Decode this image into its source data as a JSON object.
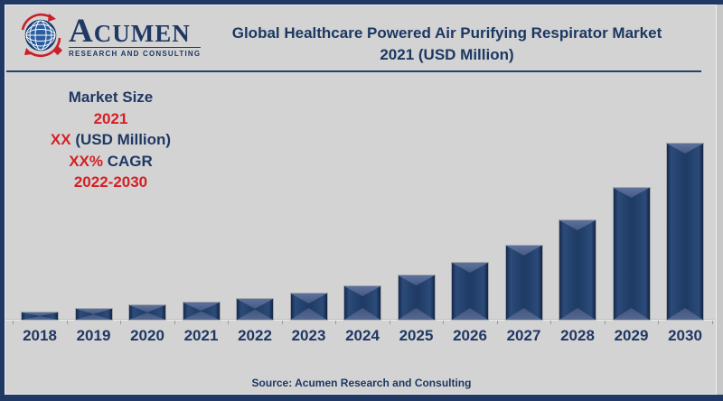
{
  "header": {
    "logo": {
      "name": "ACUMEN",
      "subtitle": "RESEARCH AND CONSULTING"
    },
    "title_line1": "Global Healthcare Powered Air Purifying Respirator Market",
    "title_line2": "2021 (USD Million)"
  },
  "info_panel": {
    "lines": [
      {
        "segments": [
          {
            "text": "Market Size",
            "color": "#1f3864"
          }
        ]
      },
      {
        "segments": [
          {
            "text": "2021",
            "color": "#d42025"
          }
        ]
      },
      {
        "segments": [
          {
            "text": "XX",
            "color": "#d42025"
          },
          {
            "text": " (USD Million)",
            "color": "#1f3864"
          }
        ]
      },
      {
        "segments": [
          {
            "text": "XX%",
            "color": "#d42025"
          },
          {
            "text": " CAGR",
            "color": "#1f3864"
          }
        ]
      },
      {
        "segments": [
          {
            "text": "2022-2030",
            "color": "#d42025"
          }
        ]
      }
    ]
  },
  "footer": {
    "source": "Source: Acumen Research and Consulting"
  },
  "colors": {
    "navy": "#1f3864",
    "red": "#d42025",
    "background": "#d3d3d3",
    "bar_fill": "#1f3c66",
    "bar_bevel": "#4e6289",
    "axis_line": "#ededed"
  },
  "chart_data": {
    "type": "bar",
    "title": "Global Healthcare Powered Air Purifying Respirator Market 2021 (USD Million)",
    "xlabel": "",
    "ylabel": "",
    "categories": [
      "2018",
      "2019",
      "2020",
      "2021",
      "2022",
      "2023",
      "2024",
      "2025",
      "2026",
      "2027",
      "2028",
      "2029",
      "2030"
    ],
    "values_relative": [
      4.1,
      6.2,
      8.2,
      9.7,
      11.8,
      14.9,
      19.0,
      25.1,
      32.3,
      42.1,
      56.4,
      74.9,
      100.0
    ],
    "value_note": "Actual values undisclosed in image (shown as XX USD Million); values are relative bar heights normalized to 2030 = 100",
    "legend": "none",
    "gridlines": "off",
    "y_axis_labels": "none"
  }
}
